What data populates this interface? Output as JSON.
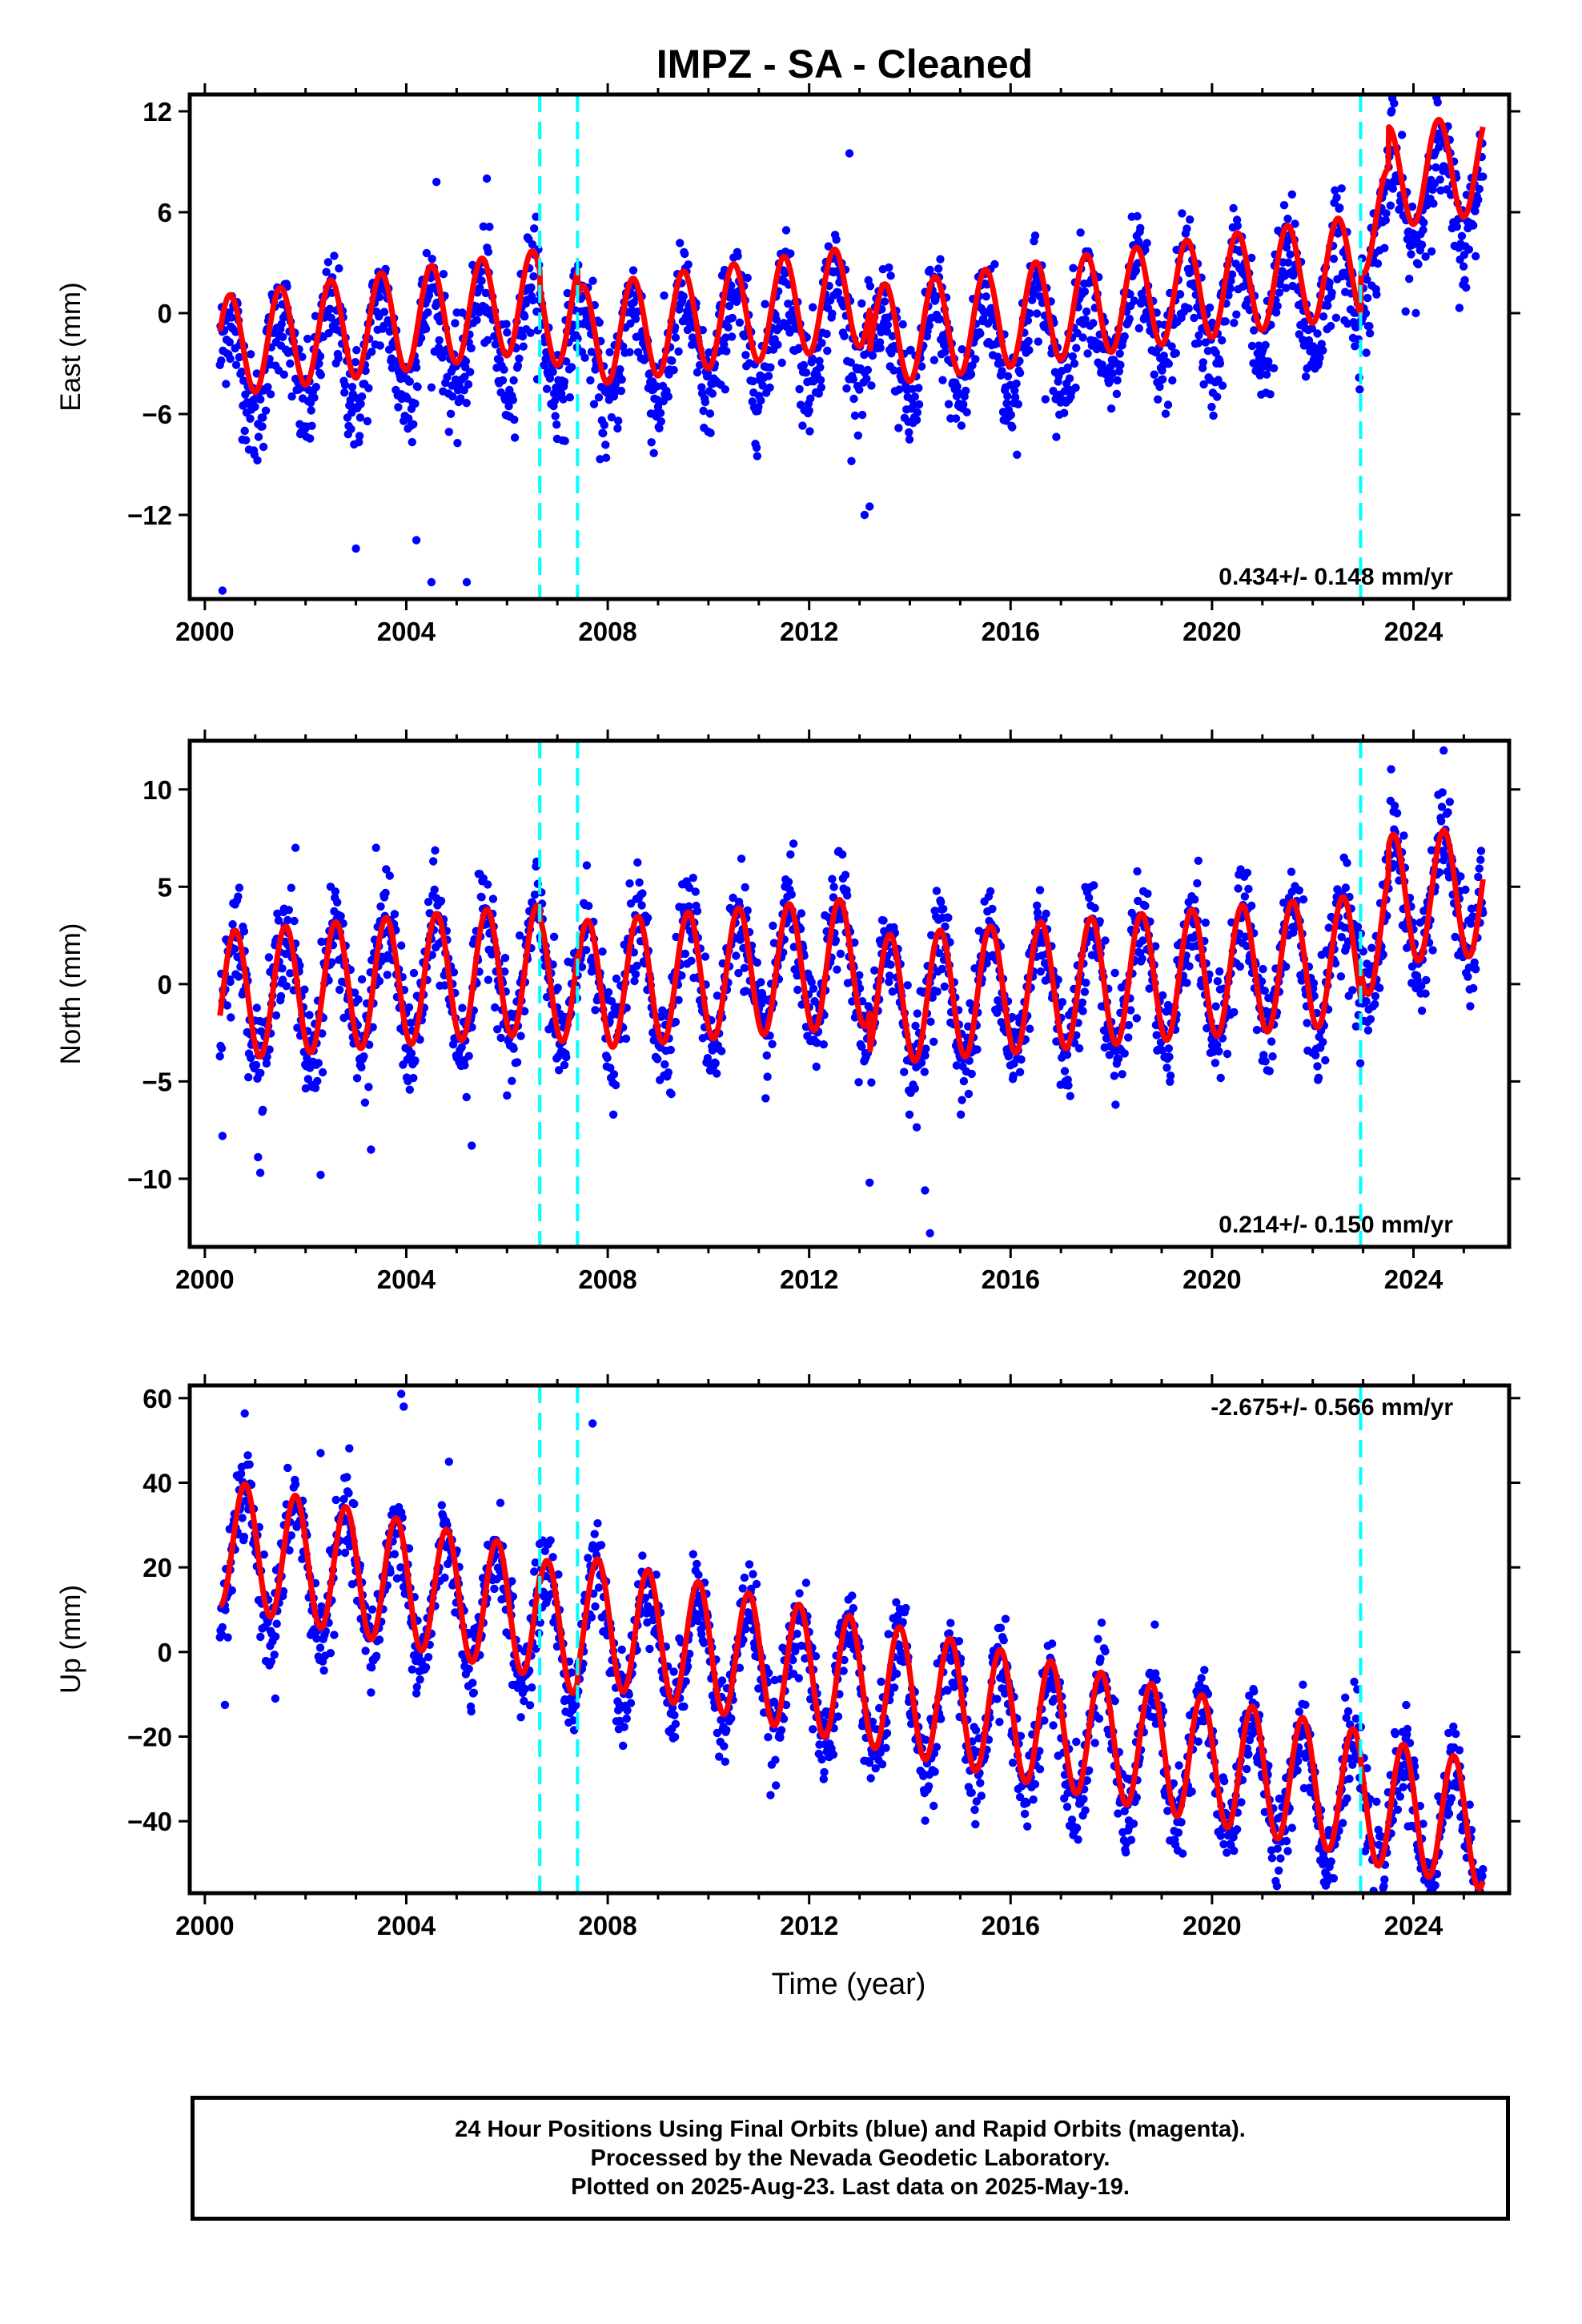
{
  "title": "IMPZ  - SA - Cleaned",
  "xlabel": "Time (year)",
  "footer": {
    "line1": "24 Hour Positions Using Final Orbits (blue) and Rapid Orbits (magenta).",
    "line2": "Processed by the Nevada Geodetic Laboratory.",
    "line3": "Plotted on 2025-Aug-23. Last data on 2025-May-19."
  },
  "colors": {
    "points": "#0000ff",
    "fit": "#ff0000",
    "offsets": "#00ffff",
    "frame": "#000000"
  },
  "chart_data": [
    {
      "type": "scatter",
      "component": "east",
      "ylabel": "East (mm)",
      "xlim": [
        1999.7,
        2025.9
      ],
      "ylim": [
        -17,
        13
      ],
      "x_ticks": [
        2000,
        2004,
        2008,
        2012,
        2016,
        2020,
        2024
      ],
      "y_ticks": [
        12,
        6,
        0,
        -6,
        -12
      ],
      "grid": false,
      "rate_label": "0.434+/- 0.148 mm/yr",
      "rate_position": "bottom-right",
      "offset_lines": [
        2006.65,
        2007.4,
        2022.95
      ],
      "series": [
        {
          "kind": "points",
          "x_range": [
            2000.3,
            2025.38
          ],
          "model": {
            "start": -3.5,
            "rate": 0.434,
            "amp": 3.0,
            "phase": 0.25,
            "steps": [
              [
                2006.65,
                -1.0
              ],
              [
                2007.4,
                -1.5
              ],
              [
                2013.2,
                -2.5
              ],
              [
                2022.95,
                2.5
              ],
              [
                2023.5,
                2.5
              ]
            ],
            "noise": 2.2
          }
        },
        {
          "kind": "fit",
          "model": {
            "start": -2.0,
            "rate": 0.434,
            "amp": 3.0,
            "phase": 0.25,
            "steps": [
              [
                2006.65,
                -1.0
              ],
              [
                2007.4,
                -1.5
              ],
              [
                2013.2,
                -2.5
              ],
              [
                2022.95,
                2.5
              ],
              [
                2023.5,
                2.5
              ]
            ]
          }
        }
      ],
      "outliers": [
        [
          2000.35,
          -16.5
        ],
        [
          2003.0,
          -14
        ],
        [
          2004.2,
          -13.5
        ],
        [
          2004.5,
          -16
        ],
        [
          2005.2,
          -16
        ],
        [
          2013.1,
          -12
        ],
        [
          2013.2,
          -11.5
        ],
        [
          2012.8,
          9.5
        ],
        [
          2004.6,
          7.8
        ],
        [
          2005.6,
          8
        ]
      ]
    },
    {
      "type": "scatter",
      "component": "north",
      "ylabel": "North (mm)",
      "xlim": [
        1999.7,
        2025.9
      ],
      "ylim": [
        -13.5,
        12.5
      ],
      "x_ticks": [
        2000,
        2004,
        2008,
        2012,
        2016,
        2020,
        2024
      ],
      "y_ticks": [
        10,
        5,
        0,
        -5,
        -10
      ],
      "grid": false,
      "rate_label": "0.214+/- 0.150 mm/yr",
      "rate_position": "bottom-right",
      "offset_lines": [
        2006.65,
        2007.4,
        2022.95
      ],
      "series": [
        {
          "kind": "points",
          "x_range": [
            2000.3,
            2025.38
          ],
          "model": {
            "start": -0.8,
            "rate": 0.214,
            "amp": 3.3,
            "phase": 0.35,
            "steps": [
              [
                2006.65,
                -0.5
              ],
              [
                2007.4,
                -0.5
              ],
              [
                2013.2,
                -2.0
              ],
              [
                2022.95,
                1.5
              ],
              [
                2023.5,
                1.5
              ]
            ],
            "noise": 1.8
          }
        },
        {
          "kind": "fit",
          "model": {
            "start": -0.6,
            "rate": 0.214,
            "amp": 3.3,
            "phase": 0.35,
            "steps": [
              [
                2006.65,
                -0.5
              ],
              [
                2007.4,
                -0.5
              ],
              [
                2013.2,
                -2.0
              ],
              [
                2022.95,
                1.5
              ],
              [
                2023.5,
                1.5
              ]
            ]
          }
        }
      ],
      "outliers": [
        [
          2000.35,
          -7.8
        ],
        [
          2001.1,
          -9.7
        ],
        [
          2002.3,
          -9.8
        ],
        [
          2003.3,
          -8.5
        ],
        [
          2005.3,
          -8.3
        ],
        [
          2013.2,
          -10.2
        ],
        [
          2014.3,
          -10.6
        ],
        [
          2014.4,
          -12.8
        ],
        [
          2024.6,
          12
        ],
        [
          2001.8,
          7
        ],
        [
          2003.4,
          7
        ]
      ]
    },
    {
      "type": "scatter",
      "component": "up",
      "ylabel": "Up (mm)",
      "xlim": [
        1999.7,
        2025.9
      ],
      "ylim": [
        -57,
        63
      ],
      "x_ticks": [
        2000,
        2004,
        2008,
        2012,
        2016,
        2020,
        2024
      ],
      "y_ticks": [
        60,
        40,
        20,
        0,
        -20,
        -40
      ],
      "grid": false,
      "rate_label": "-2.675+/- 0.566 mm/yr",
      "rate_position": "top-right",
      "offset_lines": [
        2006.65,
        2007.4,
        2022.95
      ],
      "series": [
        {
          "kind": "points",
          "x_range": [
            2000.3,
            2025.38
          ],
          "model": {
            "start": 24,
            "rate": -2.675,
            "amp": 15,
            "phase": 0.55,
            "steps": [
              [
                2006.65,
                -2
              ],
              [
                2007.4,
                3
              ],
              [
                2022.95,
                -1
              ]
            ],
            "noise": 7
          }
        },
        {
          "kind": "fit",
          "model": {
            "start": 26,
            "rate": -2.675,
            "amp": 15,
            "phase": 0.55,
            "steps": [
              [
                2006.65,
                -2
              ],
              [
                2007.4,
                3
              ],
              [
                2022.95,
                -1
              ]
            ]
          }
        }
      ],
      "outliers": [
        [
          2000.4,
          -12.5
        ],
        [
          2001.4,
          -11
        ],
        [
          2003.9,
          61
        ],
        [
          2003.95,
          58
        ],
        [
          2007.7,
          54
        ],
        [
          2002.3,
          47
        ],
        [
          2019.6,
          -33
        ],
        [
          2025.3,
          -55
        ]
      ]
    }
  ]
}
